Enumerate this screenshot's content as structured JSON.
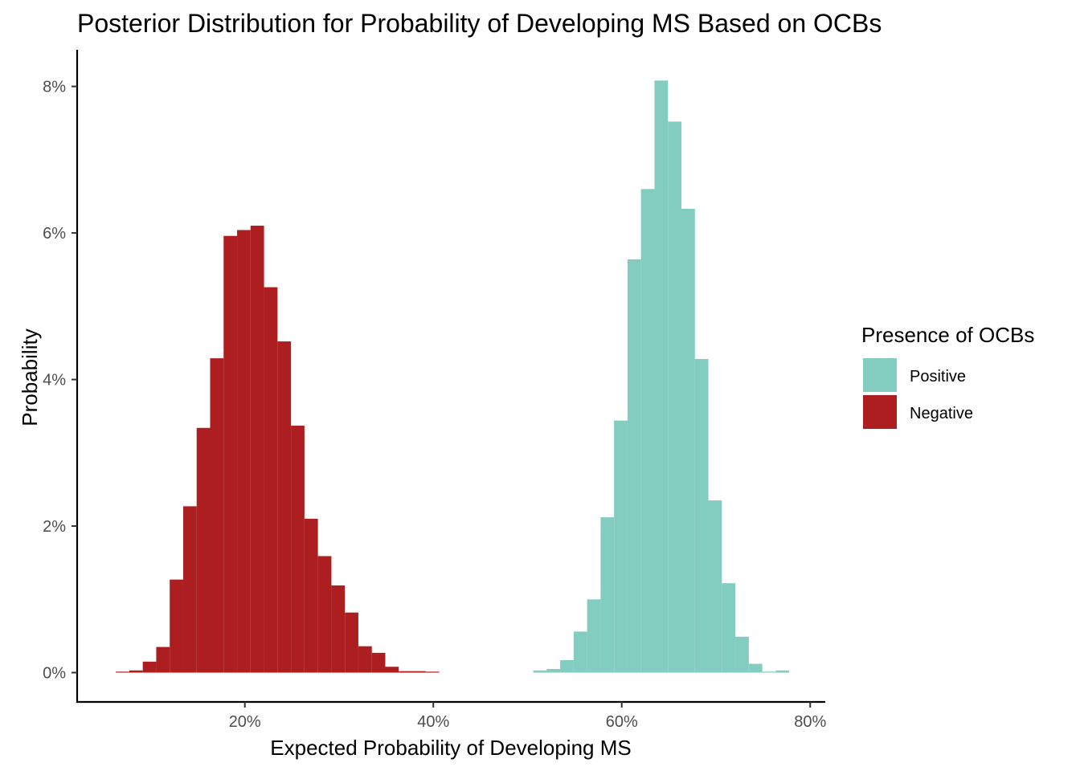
{
  "chart_data": {
    "type": "bar",
    "title": "Posterior Distribution for Probability of Developing MS Based on OCBs",
    "xlabel": "Expected Probability of Developing MS",
    "ylabel": "Probability",
    "xlim": [
      2.2,
      81.6
    ],
    "ylim": [
      -0.4,
      8.5
    ],
    "bin_width": 1.43,
    "x_ticks": [
      {
        "value": 20,
        "label": "20%"
      },
      {
        "value": 40,
        "label": "40%"
      },
      {
        "value": 60,
        "label": "60%"
      },
      {
        "value": 80,
        "label": "80%"
      }
    ],
    "y_ticks": [
      {
        "value": 0,
        "label": "0%"
      },
      {
        "value": 2,
        "label": "2%"
      },
      {
        "value": 4,
        "label": "4%"
      },
      {
        "value": 6,
        "label": "6%"
      },
      {
        "value": 8,
        "label": "8%"
      }
    ],
    "grid": false,
    "legend": {
      "title": "Presence of OCBs",
      "position": "right",
      "entries": [
        {
          "name": "Positive",
          "color": "#82ccc0"
        },
        {
          "name": "Negative",
          "color": "#ac1e1f"
        }
      ]
    },
    "series": [
      {
        "name": "Negative",
        "color": "#ac1e1f",
        "x": [
          7.02,
          8.45,
          9.88,
          11.31,
          12.74,
          14.17,
          15.6,
          17.03,
          18.46,
          19.89,
          21.32,
          22.75,
          24.18,
          25.61,
          27.04,
          28.47,
          29.9,
          31.33,
          32.76,
          34.19,
          35.62,
          37.05,
          38.48,
          39.91
        ],
        "values": [
          0.01,
          0.03,
          0.15,
          0.35,
          1.27,
          2.27,
          3.34,
          4.29,
          5.96,
          6.04,
          6.1,
          5.26,
          4.52,
          3.37,
          2.1,
          1.59,
          1.19,
          0.82,
          0.36,
          0.27,
          0.08,
          0.02,
          0.02,
          0.01
        ]
      },
      {
        "name": "Positive",
        "color": "#82ccc0",
        "x": [
          51.32,
          52.75,
          54.18,
          55.61,
          57.04,
          58.47,
          59.9,
          61.33,
          62.76,
          64.19,
          65.62,
          67.05,
          68.48,
          69.91,
          71.34,
          72.77,
          74.2,
          75.63,
          77.06
        ],
        "values": [
          0.03,
          0.05,
          0.17,
          0.56,
          1.0,
          2.12,
          3.44,
          5.64,
          6.6,
          8.08,
          7.52,
          6.33,
          4.28,
          2.35,
          1.22,
          0.49,
          0.12,
          0.0,
          0.03
        ]
      }
    ]
  }
}
